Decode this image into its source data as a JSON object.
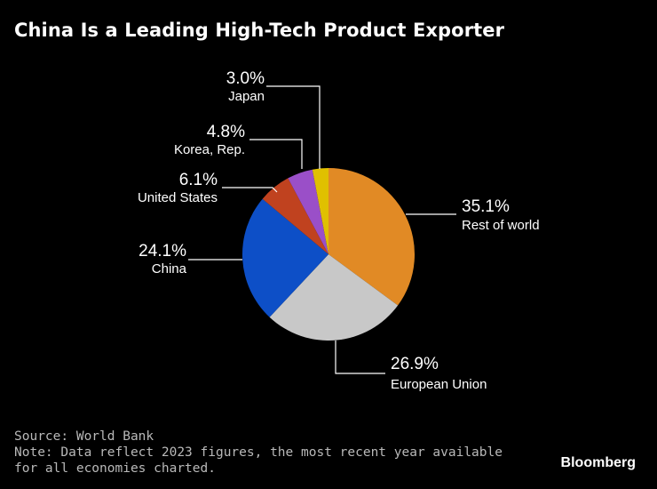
{
  "title": "China Is a Leading High-Tech Product Exporter",
  "footer": {
    "source": "Source: World Bank",
    "note": "Note: Data reflect 2023 figures, the most recent year available for all economies charted."
  },
  "brand": "Bloomberg",
  "chart_data": {
    "type": "pie",
    "title": "China Is a Leading High-Tech Product Exporter",
    "slices": [
      {
        "label": "Rest of world",
        "value": 35.1,
        "display": "35.1%",
        "color": "#e18a25"
      },
      {
        "label": "European Union",
        "value": 26.9,
        "display": "26.9%",
        "color": "#c8c8c8"
      },
      {
        "label": "China",
        "value": 24.1,
        "display": "24.1%",
        "color": "#0d4fc7"
      },
      {
        "label": "United States",
        "value": 6.1,
        "display": "6.1%",
        "color": "#c0421f"
      },
      {
        "label": "Korea, Rep.",
        "value": 4.8,
        "display": "4.8%",
        "color": "#9a4fc8"
      },
      {
        "label": "Japan",
        "value": 3.0,
        "display": "3.0%",
        "color": "#e0c000"
      }
    ]
  }
}
